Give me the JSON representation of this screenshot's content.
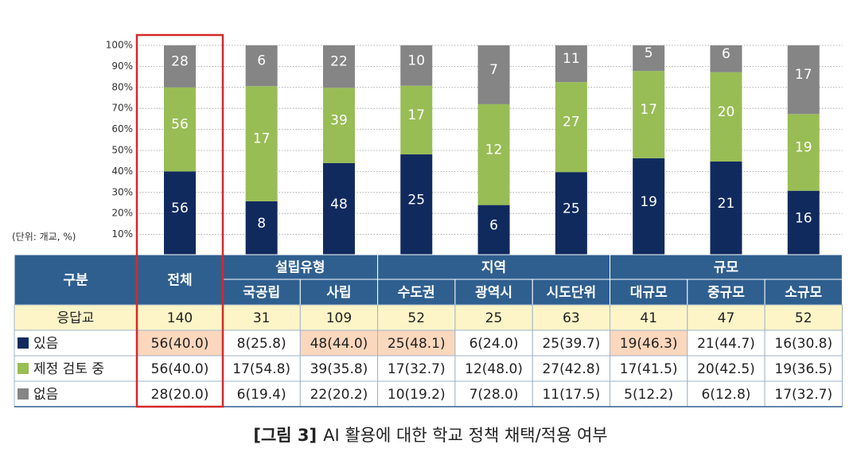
{
  "chart_data": {
    "type": "stacked_bar",
    "unit_note": "(단위: 개교, %)",
    "categories": [
      "전체",
      "국공립",
      "사립",
      "수도권",
      "광역시",
      "시도단위",
      "대규모",
      "중규모",
      "소규모"
    ],
    "ylim": [
      0,
      100
    ],
    "yticks": [
      {
        "value": 10,
        "label": "10%"
      },
      {
        "value": 20,
        "label": "20%"
      },
      {
        "value": 30,
        "label": "30%"
      },
      {
        "value": 40,
        "label": "40%"
      },
      {
        "value": 50,
        "label": "50%"
      },
      {
        "value": 60,
        "label": "60%"
      },
      {
        "value": 70,
        "label": "70%"
      },
      {
        "value": 80,
        "label": "80%"
      },
      {
        "value": 90,
        "label": "90%"
      },
      {
        "value": 100,
        "label": "100%"
      }
    ],
    "grid": true,
    "series": [
      {
        "name": "있음",
        "color": "#102a5e",
        "values": [
          40.0,
          25.8,
          44.0,
          48.1,
          24.0,
          39.7,
          46.3,
          44.7,
          30.8
        ],
        "counts": [
          56,
          8,
          48,
          25,
          6,
          25,
          19,
          21,
          16
        ]
      },
      {
        "name": "제정 검토 중",
        "color": "#98bd55",
        "values": [
          40.0,
          54.8,
          35.8,
          32.7,
          48.0,
          42.8,
          41.5,
          42.5,
          36.5
        ],
        "counts": [
          56,
          17,
          39,
          17,
          12,
          27,
          17,
          20,
          19
        ]
      },
      {
        "name": "없음",
        "color": "#858585",
        "values": [
          20.0,
          19.4,
          20.2,
          19.2,
          28.0,
          17.5,
          12.2,
          12.8,
          32.7
        ],
        "counts": [
          28,
          6,
          22,
          10,
          7,
          11,
          5,
          6,
          17
        ]
      }
    ]
  },
  "table": {
    "header": "구분",
    "groups": [
      {
        "label": "설립유형",
        "span": 2
      },
      {
        "label": "지역",
        "span": 3
      },
      {
        "label": "규모",
        "span": 3
      }
    ],
    "rows": [
      {
        "label": "응답교",
        "cells": [
          "140",
          "31",
          "109",
          "52",
          "25",
          "63",
          "41",
          "47",
          "52"
        ]
      },
      {
        "cells": [
          "56(40.0)",
          "8(25.8)",
          "48(44.0)",
          "25(48.1)",
          "6(24.0)",
          "25(39.7)",
          "19(46.3)",
          "21(44.7)",
          "16(30.8)"
        ],
        "highlight": [
          0,
          2,
          3,
          6
        ]
      },
      {
        "cells": [
          "56(40.0)",
          "17(54.8)",
          "39(35.8)",
          "17(32.7)",
          "12(48.0)",
          "27(42.8)",
          "17(41.5)",
          "20(42.5)",
          "19(36.5)"
        ]
      },
      {
        "cells": [
          "28(20.0)",
          "6(19.4)",
          "22(20.2)",
          "10(19.2)",
          "7(28.0)",
          "11(17.5)",
          "5(12.2)",
          "6(12.8)",
          "17(32.7)"
        ]
      }
    ]
  },
  "caption": {
    "number": "[그림 3]",
    "text": "AI 활용에 대한 학교 정책 채택/적용 여부"
  }
}
